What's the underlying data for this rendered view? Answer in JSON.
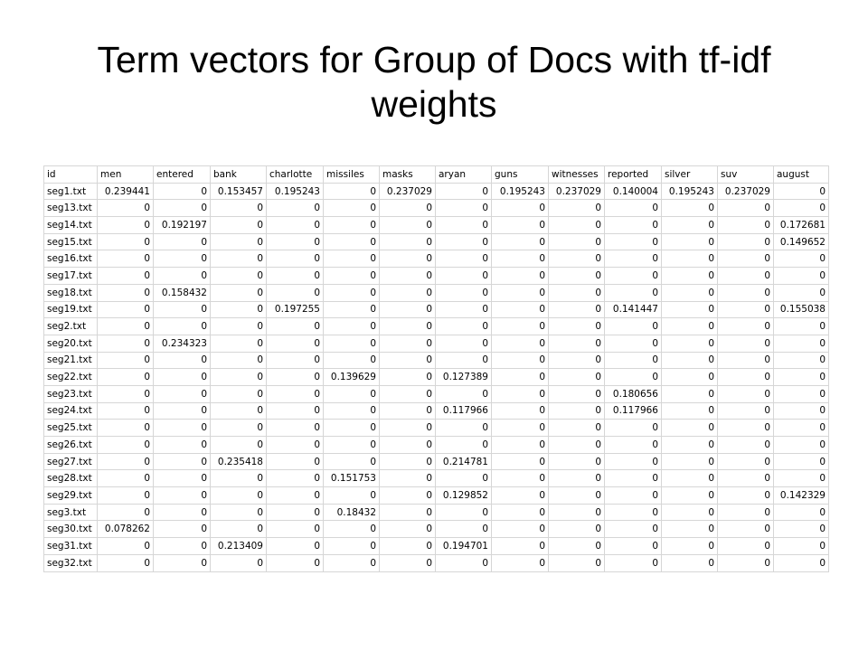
{
  "slide": {
    "title_line1": "Term vectors for Group of Docs with tf-idf",
    "title_line2": "weights"
  },
  "table": {
    "headers": [
      "id",
      "men",
      "entered",
      "bank",
      "charlotte",
      "missiles",
      "masks",
      "aryan",
      "guns",
      "witnesses",
      "reported",
      "silver",
      "suv",
      "august"
    ],
    "rows": [
      [
        "seg1.txt",
        "0.239441",
        "0",
        "0.153457",
        "0.195243",
        "0",
        "0.237029",
        "0",
        "0.195243",
        "0.237029",
        "0.140004",
        "0.195243",
        "0.237029",
        "0"
      ],
      [
        "seg13.txt",
        "0",
        "0",
        "0",
        "0",
        "0",
        "0",
        "0",
        "0",
        "0",
        "0",
        "0",
        "0",
        "0"
      ],
      [
        "seg14.txt",
        "0",
        "0.192197",
        "0",
        "0",
        "0",
        "0",
        "0",
        "0",
        "0",
        "0",
        "0",
        "0",
        "0.172681"
      ],
      [
        "seg15.txt",
        "0",
        "0",
        "0",
        "0",
        "0",
        "0",
        "0",
        "0",
        "0",
        "0",
        "0",
        "0",
        "0.149652"
      ],
      [
        "seg16.txt",
        "0",
        "0",
        "0",
        "0",
        "0",
        "0",
        "0",
        "0",
        "0",
        "0",
        "0",
        "0",
        "0"
      ],
      [
        "seg17.txt",
        "0",
        "0",
        "0",
        "0",
        "0",
        "0",
        "0",
        "0",
        "0",
        "0",
        "0",
        "0",
        "0"
      ],
      [
        "seg18.txt",
        "0",
        "0.158432",
        "0",
        "0",
        "0",
        "0",
        "0",
        "0",
        "0",
        "0",
        "0",
        "0",
        "0"
      ],
      [
        "seg19.txt",
        "0",
        "0",
        "0",
        "0.197255",
        "0",
        "0",
        "0",
        "0",
        "0",
        "0.141447",
        "0",
        "0",
        "0.155038"
      ],
      [
        "seg2.txt",
        "0",
        "0",
        "0",
        "0",
        "0",
        "0",
        "0",
        "0",
        "0",
        "0",
        "0",
        "0",
        "0"
      ],
      [
        "seg20.txt",
        "0",
        "0.234323",
        "0",
        "0",
        "0",
        "0",
        "0",
        "0",
        "0",
        "0",
        "0",
        "0",
        "0"
      ],
      [
        "seg21.txt",
        "0",
        "0",
        "0",
        "0",
        "0",
        "0",
        "0",
        "0",
        "0",
        "0",
        "0",
        "0",
        "0"
      ],
      [
        "seg22.txt",
        "0",
        "0",
        "0",
        "0",
        "0.139629",
        "0",
        "0.127389",
        "0",
        "0",
        "0",
        "0",
        "0",
        "0"
      ],
      [
        "seg23.txt",
        "0",
        "0",
        "0",
        "0",
        "0",
        "0",
        "0",
        "0",
        "0",
        "0.180656",
        "0",
        "0",
        "0"
      ],
      [
        "seg24.txt",
        "0",
        "0",
        "0",
        "0",
        "0",
        "0",
        "0.117966",
        "0",
        "0",
        "0.117966",
        "0",
        "0",
        "0"
      ],
      [
        "seg25.txt",
        "0",
        "0",
        "0",
        "0",
        "0",
        "0",
        "0",
        "0",
        "0",
        "0",
        "0",
        "0",
        "0"
      ],
      [
        "seg26.txt",
        "0",
        "0",
        "0",
        "0",
        "0",
        "0",
        "0",
        "0",
        "0",
        "0",
        "0",
        "0",
        "0"
      ],
      [
        "seg27.txt",
        "0",
        "0",
        "0.235418",
        "0",
        "0",
        "0",
        "0.214781",
        "0",
        "0",
        "0",
        "0",
        "0",
        "0"
      ],
      [
        "seg28.txt",
        "0",
        "0",
        "0",
        "0",
        "0.151753",
        "0",
        "0",
        "0",
        "0",
        "0",
        "0",
        "0",
        "0"
      ],
      [
        "seg29.txt",
        "0",
        "0",
        "0",
        "0",
        "0",
        "0",
        "0.129852",
        "0",
        "0",
        "0",
        "0",
        "0",
        "0.142329"
      ],
      [
        "seg3.txt",
        "0",
        "0",
        "0",
        "0",
        "0.18432",
        "0",
        "0",
        "0",
        "0",
        "0",
        "0",
        "0",
        "0"
      ],
      [
        "seg30.txt",
        "0.078262",
        "0",
        "0",
        "0",
        "0",
        "0",
        "0",
        "0",
        "0",
        "0",
        "0",
        "0",
        "0"
      ],
      [
        "seg31.txt",
        "0",
        "0",
        "0.213409",
        "0",
        "0",
        "0",
        "0.194701",
        "0",
        "0",
        "0",
        "0",
        "0",
        "0"
      ],
      [
        "seg32.txt",
        "0",
        "0",
        "0",
        "0",
        "0",
        "0",
        "0",
        "0",
        "0",
        "0",
        "0",
        "0",
        "0"
      ]
    ]
  }
}
